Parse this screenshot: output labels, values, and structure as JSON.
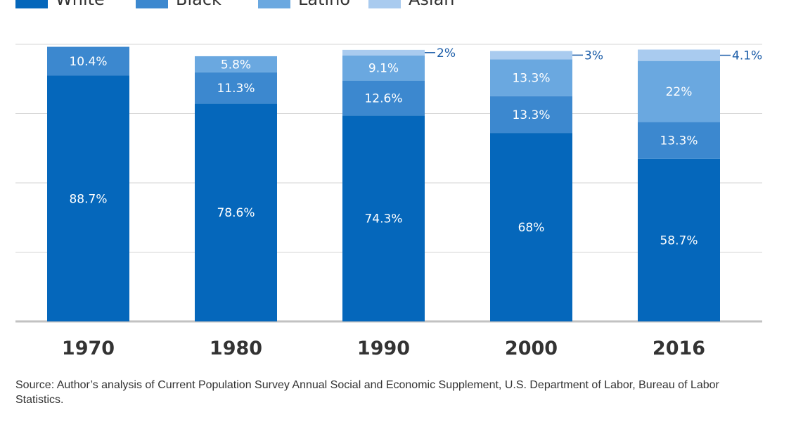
{
  "colors": {
    "white": "#0567bb",
    "black": "#3c88cf",
    "latino": "#6aa8e0",
    "asian": "#a9cbef",
    "grid": "#d4d4d4",
    "axis": "#c2c2c2",
    "year_label": "#333333",
    "value_label_inside": "#ffffff",
    "value_label_outside": "#1a5ca8"
  },
  "chart_data": {
    "type": "bar",
    "stacked": true,
    "categories": [
      "1970",
      "1980",
      "1990",
      "2000",
      "2016"
    ],
    "series": [
      {
        "name": "White",
        "key": "white",
        "values": [
          88.7,
          78.6,
          74.3,
          68,
          58.7
        ],
        "labels": [
          "88.7%",
          "78.6%",
          "74.3%",
          "68%",
          "58.7%"
        ]
      },
      {
        "name": "Black",
        "key": "black",
        "values": [
          10.4,
          11.3,
          12.6,
          13.3,
          13.3
        ],
        "labels": [
          "10.4%",
          "11.3%",
          "12.6%",
          "13.3%",
          "13.3%"
        ]
      },
      {
        "name": "Latino",
        "key": "latino",
        "values": [
          0,
          5.8,
          9.1,
          13.3,
          22
        ],
        "labels": [
          "",
          "5.8%",
          "9.1%",
          "13.3%",
          "22%"
        ]
      },
      {
        "name": "Asian",
        "key": "asian",
        "values": [
          0,
          0,
          2,
          3,
          4.1
        ],
        "labels": [
          "",
          "",
          "2%",
          "3%",
          "4.1%"
        ]
      }
    ],
    "outside_label_series": "Asian",
    "ylim": [
      0,
      100
    ],
    "grid": true,
    "legend_position": "top-left",
    "source": "Source: Author’s analysis of Current Population Survey Annual Social and Economic Supplement, U.S. Department of Labor, Bureau of Labor Statistics."
  }
}
